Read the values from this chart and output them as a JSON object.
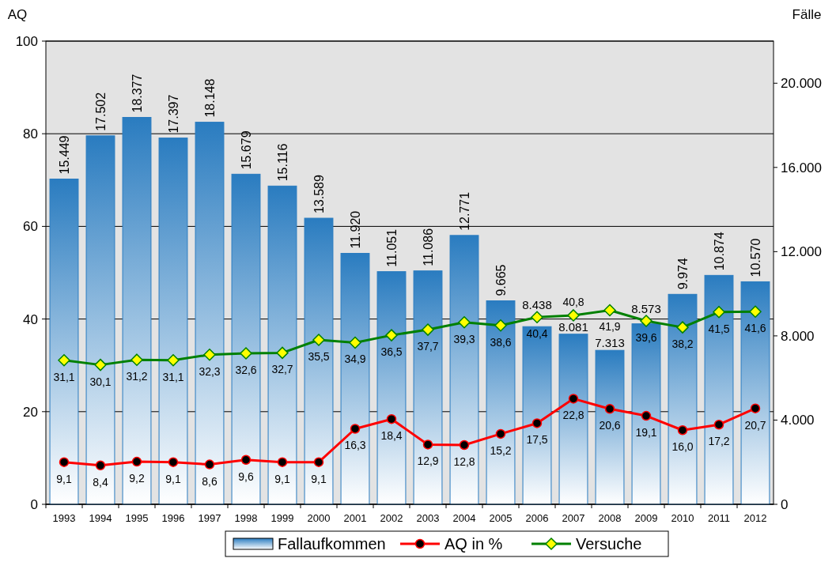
{
  "chart_data": {
    "type": "bar",
    "ylabel": "AQ",
    "y2label": "Fälle",
    "categories": [
      "1993",
      "1994",
      "1995",
      "1996",
      "1997",
      "1998",
      "1999",
      "2000",
      "2001",
      "2002",
      "2003",
      "2004",
      "2005",
      "2006",
      "2007",
      "2008",
      "2009",
      "2010",
      "2011",
      "2012"
    ],
    "series": [
      {
        "name": "Fallaufkommen",
        "type": "bar",
        "axis": "y2",
        "color": "#2a7cc0",
        "values": [
          15449,
          17502,
          18377,
          17397,
          18148,
          15679,
          15116,
          13589,
          11920,
          11051,
          11086,
          12771,
          9665,
          8438,
          8081,
          7313,
          8573,
          9974,
          10874,
          10570
        ],
        "value_labels": [
          "15.449",
          "17.502",
          "18.377",
          "17.397",
          "18.148",
          "15.679",
          "15.116",
          "13.589",
          "11.920",
          "11.051",
          "11.086",
          "12.771",
          "9.665",
          "8.438",
          "8.081",
          "7.313",
          "8.573",
          "9.974",
          "10.874",
          "10.570"
        ]
      },
      {
        "name": "AQ in %",
        "type": "line",
        "color": "#ff0000",
        "marker": "circle",
        "values": [
          9.1,
          8.4,
          9.2,
          9.1,
          8.6,
          9.6,
          9.1,
          9.1,
          16.3,
          18.4,
          12.9,
          12.8,
          15.2,
          17.5,
          22.8,
          20.6,
          19.1,
          16.0,
          17.2,
          20.7
        ],
        "value_labels": [
          "9,1",
          "8,4",
          "9,2",
          "9,1",
          "8,6",
          "9,6",
          "9,1",
          "9,1",
          "16,3",
          "18,4",
          "12,9",
          "12,8",
          "15,2",
          "17,5",
          "22,8",
          "20,6",
          "19,1",
          "16,0",
          "17,2",
          "20,7"
        ]
      },
      {
        "name": "Versuche",
        "type": "line",
        "color": "#008000",
        "marker": "diamond",
        "values": [
          31.1,
          30.1,
          31.2,
          31.1,
          32.3,
          32.6,
          32.7,
          35.5,
          34.9,
          36.5,
          37.7,
          39.3,
          38.6,
          40.4,
          40.8,
          41.9,
          39.6,
          38.2,
          41.5,
          41.6
        ],
        "value_labels": [
          "31,1",
          "30,1",
          "31,2",
          "31,1",
          "32,3",
          "32,6",
          "32,7",
          "35,5",
          "34,9",
          "36,5",
          "37,7",
          "39,3",
          "38,6",
          "40,4",
          "40,8",
          "41,9",
          "39,6",
          "38,2",
          "41,5",
          "41,6"
        ]
      }
    ],
    "ylim": [
      0,
      100
    ],
    "yticks": [
      0,
      20,
      40,
      60,
      80,
      100
    ],
    "y2lim": [
      0,
      22000
    ],
    "y2ticks": [
      0,
      {
        "value": 4000,
        "label": "4.000"
      },
      {
        "value": 8000,
        "label": "8.000"
      },
      {
        "value": 12000,
        "label": "12.000"
      },
      {
        "value": 16000,
        "label": "16.000"
      },
      {
        "value": 20000,
        "label": "20.000"
      }
    ],
    "grid": "y",
    "legend": "bottom"
  }
}
